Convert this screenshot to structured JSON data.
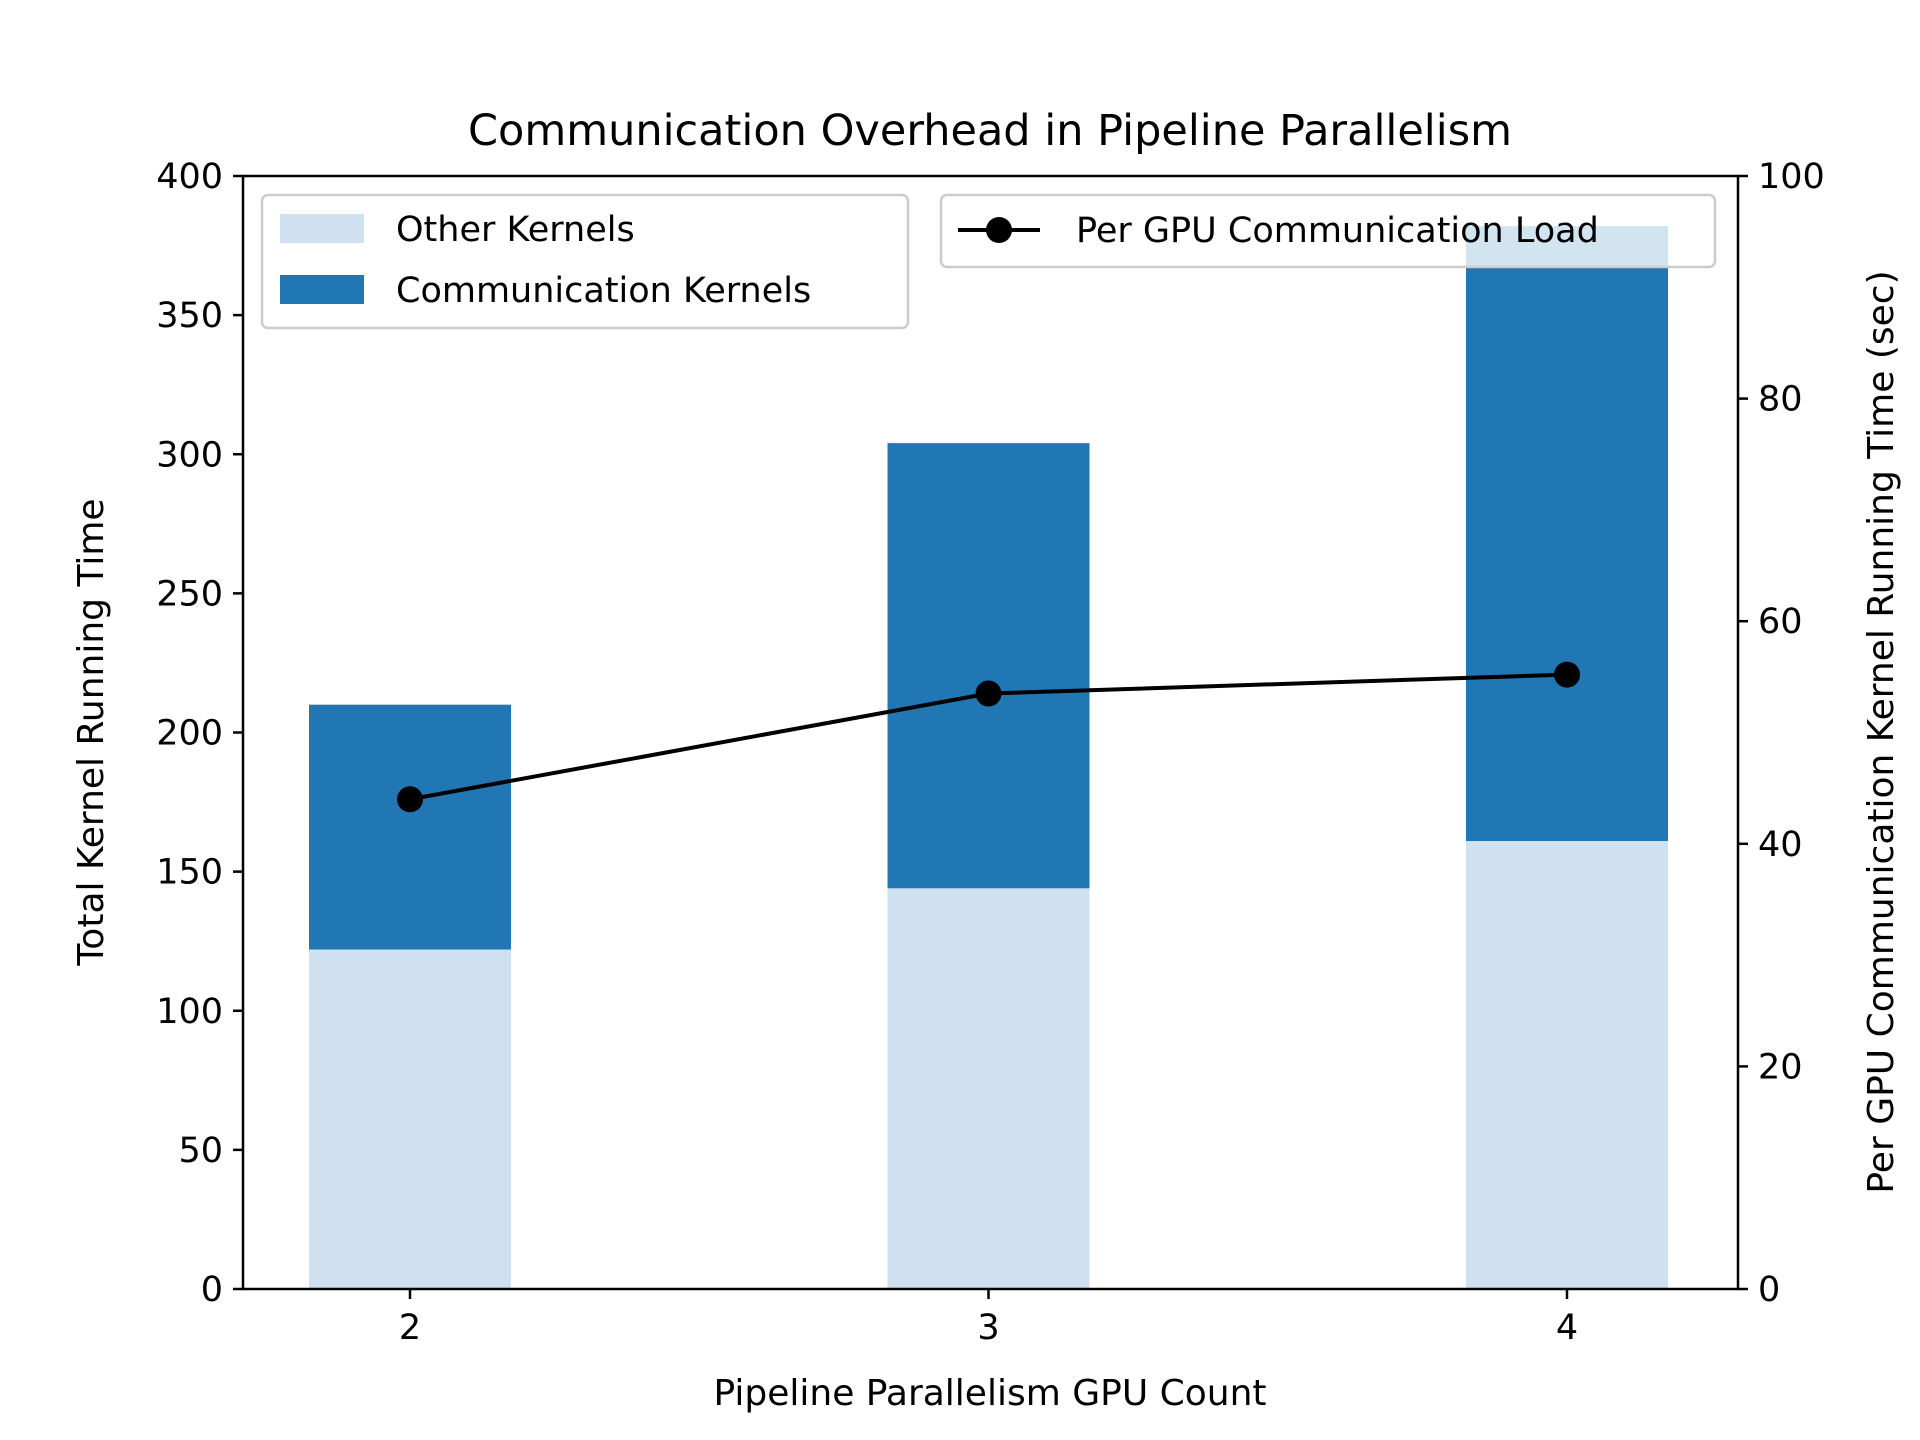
{
  "chart_data": {
    "type": "bar",
    "title": "Communication Overhead in Pipeline Parallelism",
    "xlabel": "Pipeline Parallelism GPU Count",
    "ylabel": "Total Kernel Running Time",
    "y2label": "Per GPU Communication Kernel Running Time (sec)",
    "categories": [
      "2",
      "3",
      "4"
    ],
    "ylim": [
      0,
      400
    ],
    "y2lim": [
      0,
      100
    ],
    "yticks": [
      0,
      50,
      100,
      150,
      200,
      250,
      300,
      350,
      400
    ],
    "y2ticks": [
      0,
      20,
      40,
      60,
      80,
      100
    ],
    "stacked": true,
    "series": [
      {
        "name": "Other Kernels",
        "color": "#cfe0f0",
        "values": [
          122,
          144,
          161
        ]
      },
      {
        "name": "Communication Kernels",
        "color": "#2077b4",
        "values": [
          88,
          160,
          221
        ]
      }
    ],
    "line_series": {
      "name": "Per GPU Communication Load",
      "axis": "right",
      "color": "#000000",
      "marker": "circle",
      "values": [
        44.0,
        53.5,
        55.2
      ]
    },
    "legend": [
      {
        "placement": "top-left",
        "entries": [
          "Other Kernels",
          "Communication Kernels"
        ]
      },
      {
        "placement": "top-right",
        "entries": [
          "Per GPU Communication Load"
        ]
      }
    ],
    "grid": false
  }
}
